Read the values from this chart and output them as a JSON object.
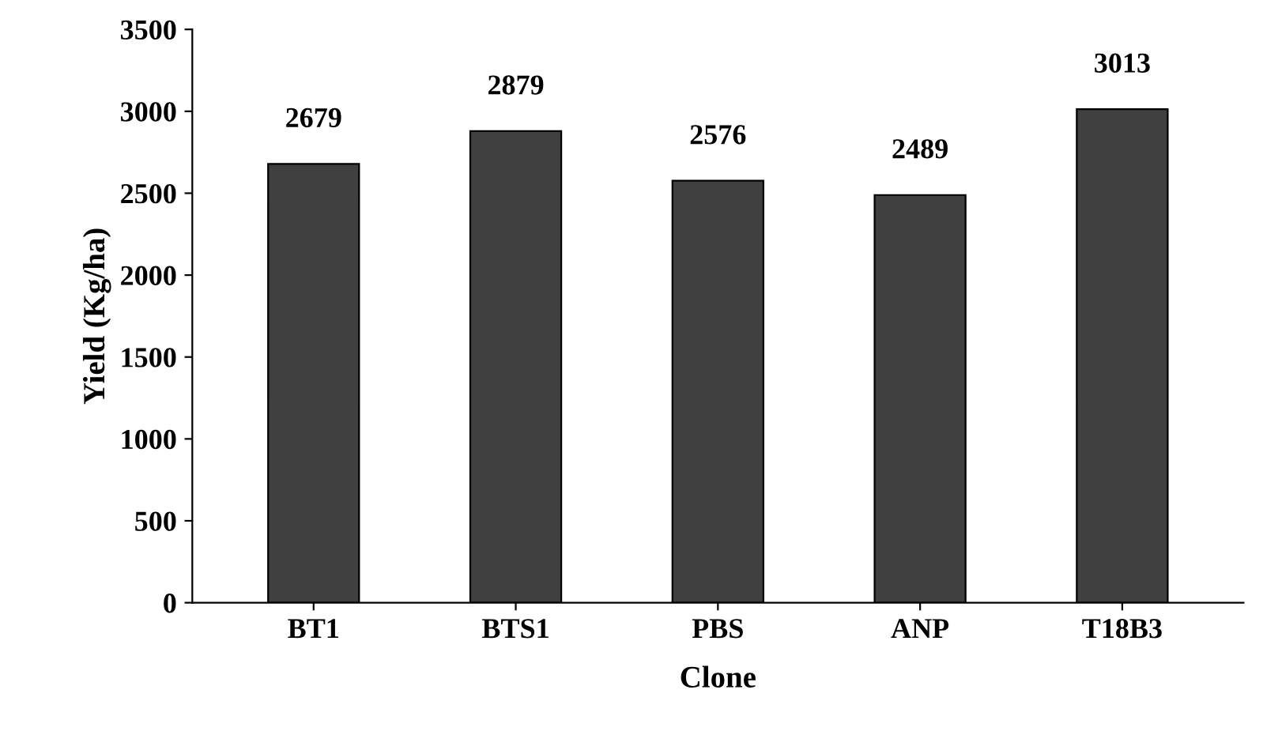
{
  "chart_data": {
    "type": "bar",
    "xlabel": "Clone",
    "ylabel": "Yield (Kg/ha)",
    "categories": [
      "BT1",
      "BTS1",
      "PBS",
      "ANP",
      "T18B3"
    ],
    "values": [
      2679,
      2879,
      2576,
      2489,
      3013
    ],
    "color": "#404040",
    "ylim": [
      0,
      3500
    ],
    "yticks": [
      0,
      500,
      1000,
      1500,
      2000,
      2500,
      3000,
      3500
    ],
    "data_labels": true,
    "grid": false
  }
}
